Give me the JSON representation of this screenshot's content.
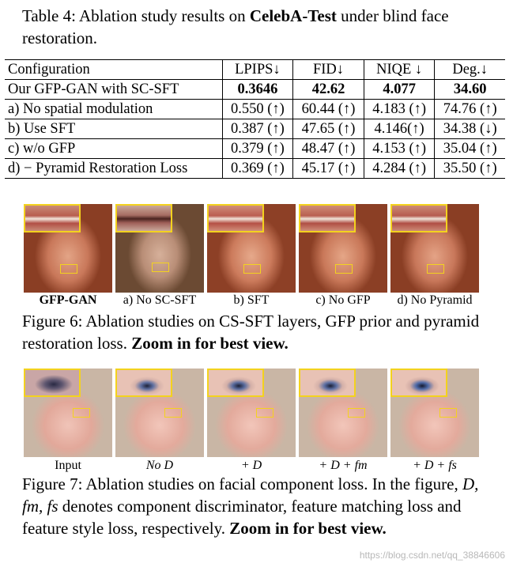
{
  "table4": {
    "caption_prefix": "Table 4: Ablation study results on ",
    "caption_bold": "CelebA-Test",
    "caption_suffix": " under blind face restoration.",
    "headers": [
      "Configuration",
      "LPIPS↓",
      "FID↓",
      "NIQE ↓",
      "Deg.↓"
    ],
    "ours": [
      "Our GFP-GAN with SC-SFT",
      "0.3646",
      "42.62",
      "4.077",
      "34.60"
    ],
    "rows": [
      [
        "a) No spatial modulation",
        "0.550 (↑)",
        "60.44 (↑)",
        "4.183 (↑)",
        "74.76 (↑)"
      ],
      [
        "b) Use SFT",
        "0.387 (↑)",
        "47.65 (↑)",
        "4.146(↑)",
        "34.38 (↓)"
      ],
      [
        "c) w/o GFP",
        "0.379 (↑)",
        "48.47 (↑)",
        "4.153 (↑)",
        "35.04 (↑)"
      ],
      [
        "d) − Pyramid Restoration Loss",
        "0.369 (↑)",
        "45.17 (↑)",
        "4.284 (↑)",
        "35.50 (↑)"
      ]
    ]
  },
  "figure6": {
    "labels": [
      "GFP-GAN",
      "a) No SC-SFT",
      "b) SFT",
      "c) No GFP",
      "d) No Pyramid"
    ],
    "caption_plain": "Figure 6: Ablation studies on CS-SFT layers, GFP prior and pyramid restoration loss. ",
    "caption_bold": "Zoom in for best view."
  },
  "figure7": {
    "labels": [
      "Input",
      "No D",
      "+ D",
      "+ D + fm",
      "+ D + fs"
    ],
    "caption_prefix": "Figure 7: Ablation studies on facial component loss. In the figure, ",
    "caption_italic": "D, fm, fs",
    "caption_middle": " denotes component discriminator, feature matching loss and feature style loss, respectively. ",
    "caption_bold": "Zoom in for best view."
  },
  "watermark": "https://blog.csdn.net/qq_38846606",
  "colors": {
    "highlight_box": "#f3d21e"
  }
}
